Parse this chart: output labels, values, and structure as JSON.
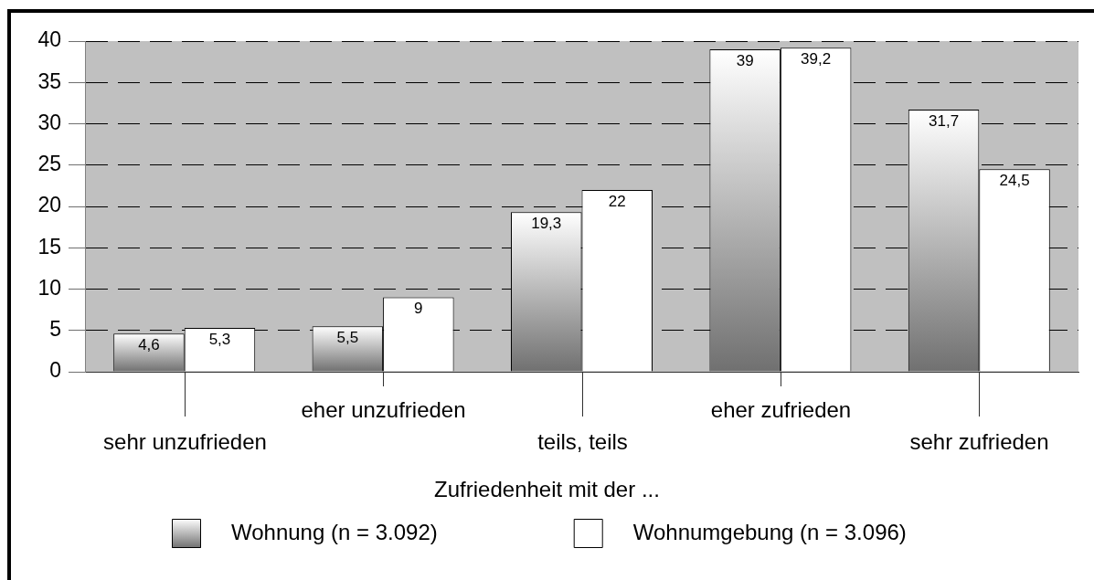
{
  "chart_data": {
    "type": "bar",
    "categories": [
      "sehr unzufrieden",
      "eher unzufrieden",
      "teils, teils",
      "eher zufrieden",
      "sehr zufrieden"
    ],
    "series": [
      {
        "name": "Wohnung (n = 3.092)",
        "color": "#707070",
        "values": [
          4.6,
          5.5,
          19.3,
          39,
          31.7
        ],
        "value_labels": [
          "4,6",
          "5,5",
          "19,3",
          "39",
          "31,7"
        ]
      },
      {
        "name": "Wohnumgebung (n = 3.096)",
        "color": "#ffffff",
        "values": [
          5.3,
          9,
          22,
          39.2,
          24.5
        ],
        "value_labels": [
          "5,3",
          "9",
          "22",
          "39,2",
          "24,5"
        ]
      }
    ],
    "legend_title": "Zufriedenheit mit der ...",
    "legend": "bottom",
    "ylim": [
      0,
      40
    ],
    "yticks": [
      0,
      5,
      10,
      15,
      20,
      25,
      30,
      35,
      40
    ],
    "grid": "y"
  }
}
